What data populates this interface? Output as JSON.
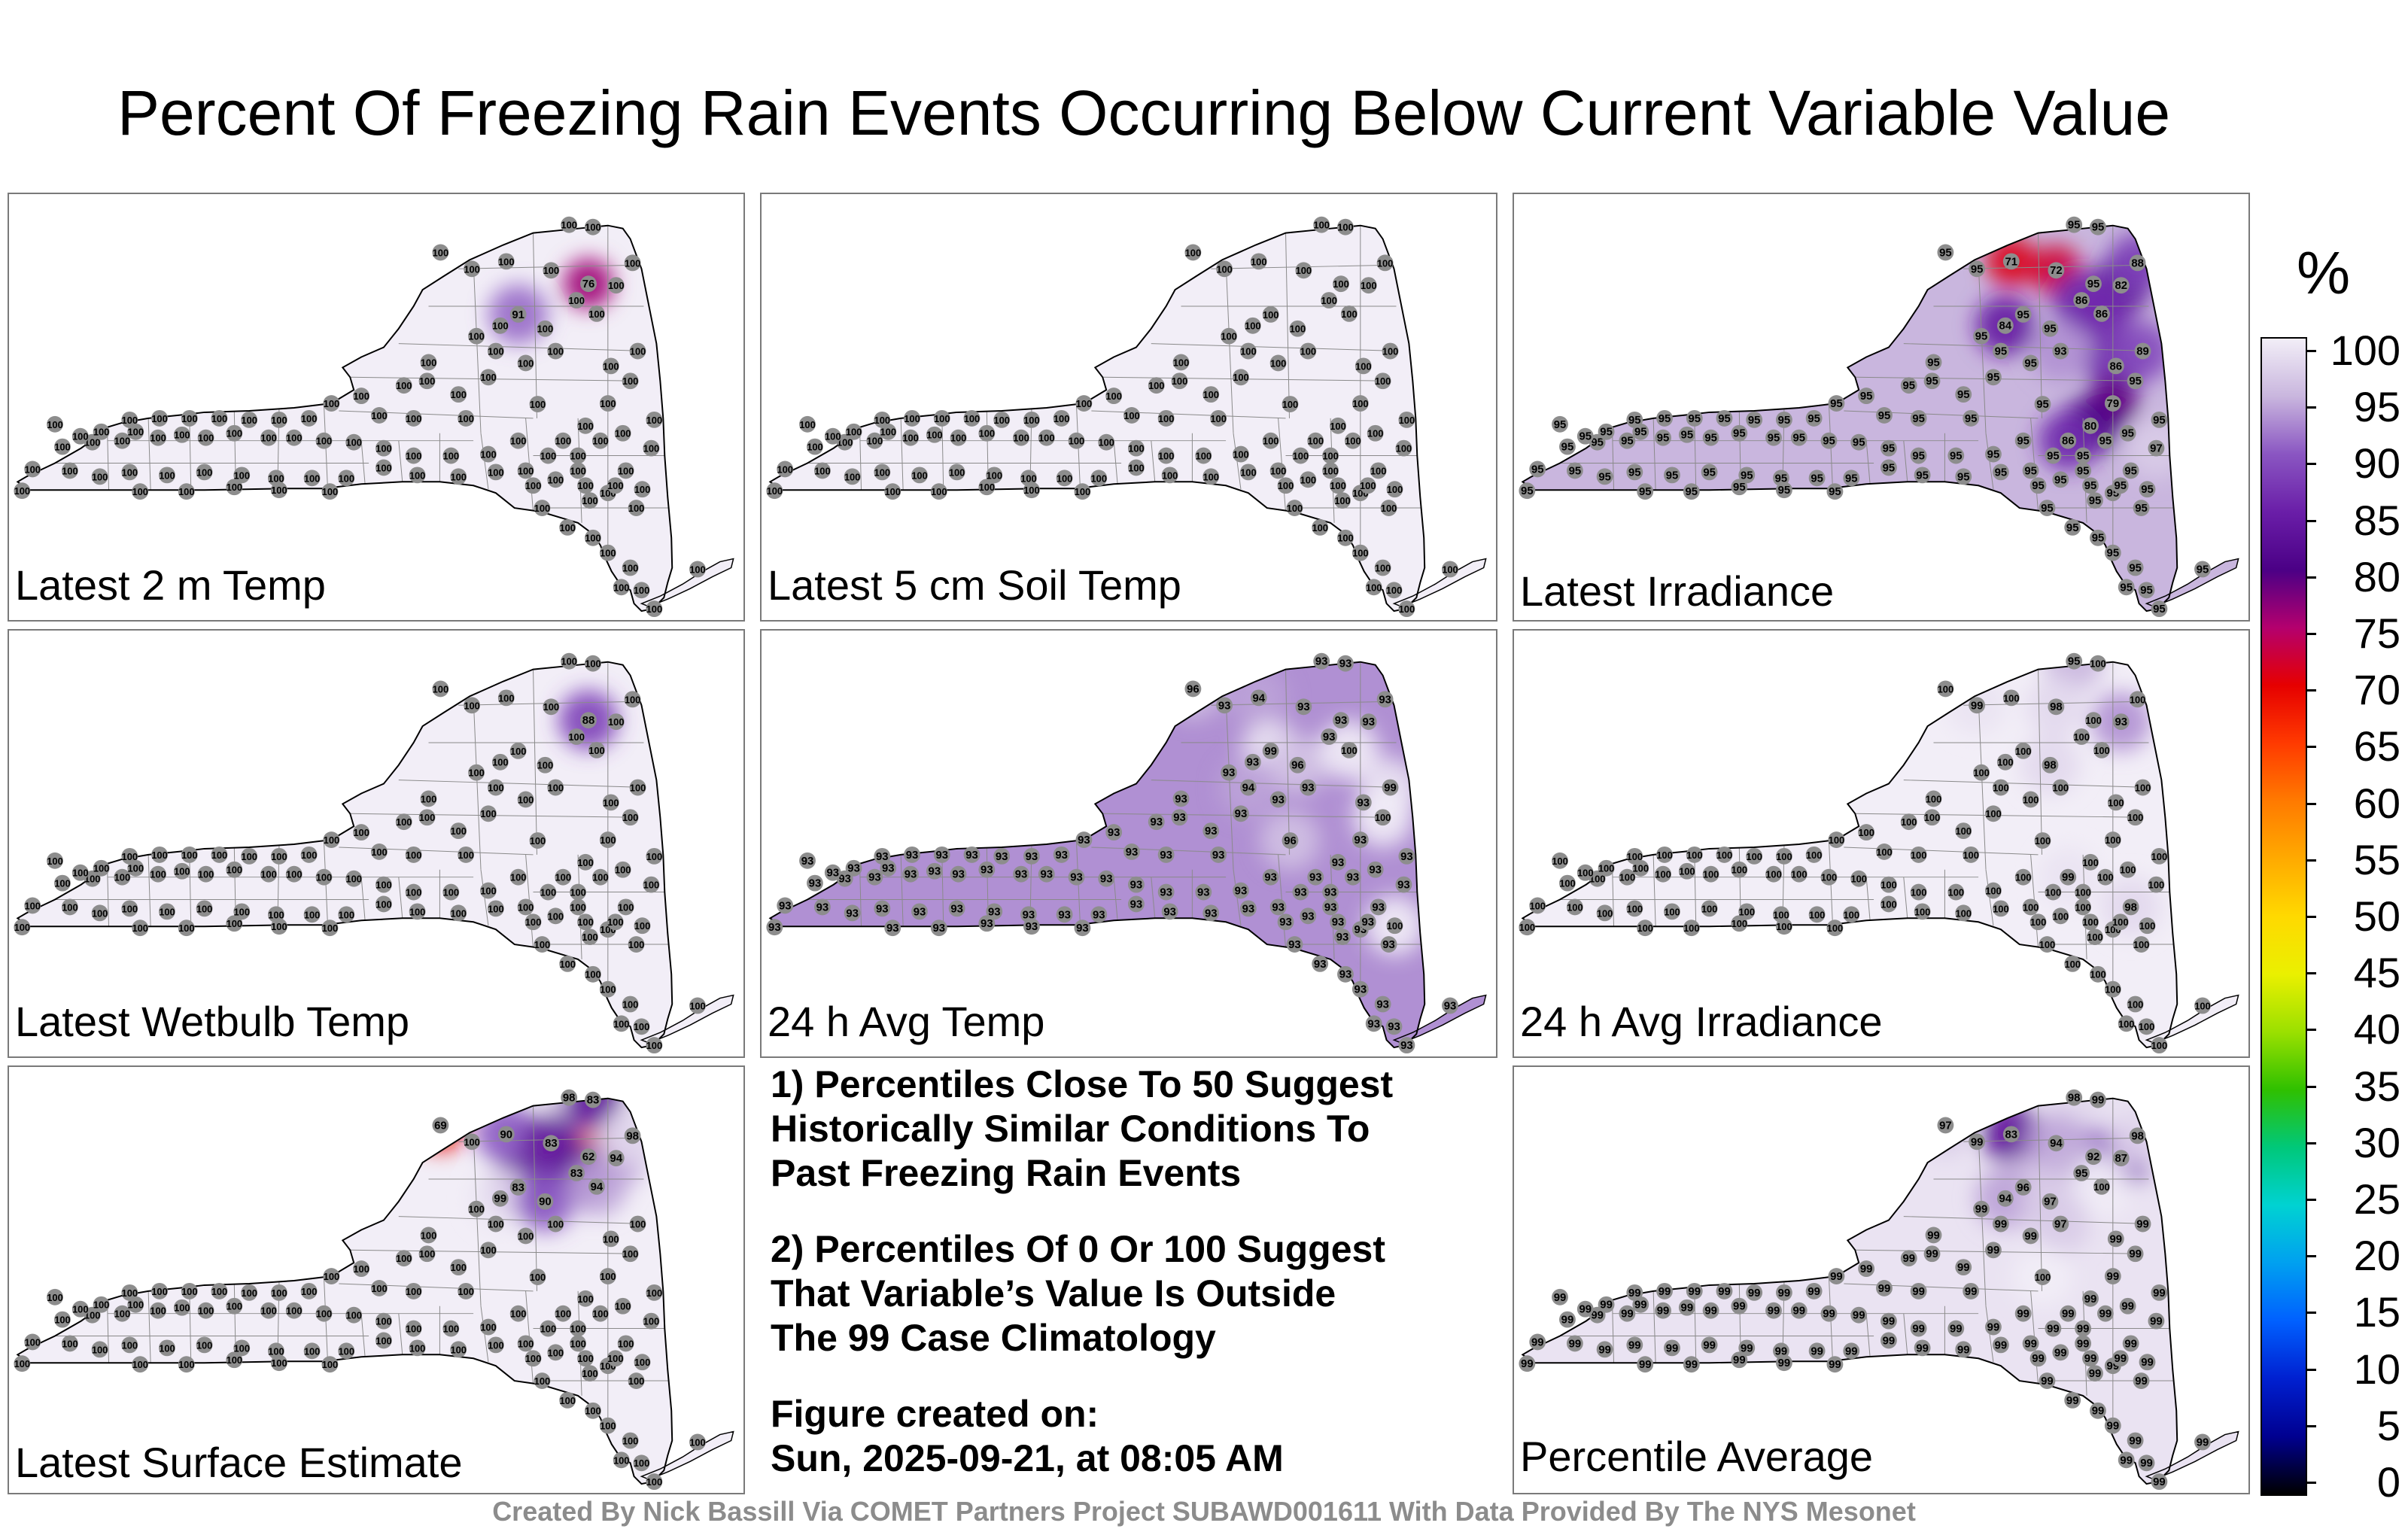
{
  "title": "Percent Of Freezing Rain Events Occurring Below Current Variable Value",
  "panels": [
    {
      "label": "Latest 2 m Temp",
      "base_value": 100,
      "overrides": {
        "4": 76,
        "9": 91
      }
    },
    {
      "label": "Latest 5 cm Soil Temp",
      "base_value": 100,
      "overrides": {}
    },
    {
      "label": "Latest Irradiance",
      "base_value": 95,
      "overrides": {
        "5": 82,
        "6": 71,
        "7": 72,
        "8": 86,
        "10": 84,
        "12": 88,
        "13": 86,
        "14": 93,
        "16": 86,
        "17": 89,
        "18": 79,
        "19": 80,
        "20": 86,
        "23": 97
      }
    },
    {
      "label": "Latest Wetbulb Temp",
      "base_value": 100,
      "overrides": {
        "4": 88
      }
    },
    {
      "label": "24 h Avg Temp",
      "base_value": 93,
      "overrides": {
        "2": 96,
        "6": 94,
        "9": 99,
        "11": 96,
        "13": 100,
        "15": 94,
        "17": 99,
        "21": 100,
        "25": 100,
        "30": 96
      }
    },
    {
      "label": "24 h Avg Irradiance",
      "base_value": 100,
      "overrides": {
        "0": 95,
        "3": 99,
        "5": 93,
        "7": 98,
        "11": 98,
        "20": 99,
        "24": 98
      }
    },
    {
      "label": "Latest Surface Estimate",
      "base_value": 100,
      "overrides": {
        "0": 98,
        "1": 83,
        "2": 69,
        "4": 62,
        "5": 94,
        "6": 90,
        "7": 83,
        "8": 83,
        "9": 83,
        "10": 99,
        "11": 90,
        "12": 98,
        "13": 94
      }
    },
    {
      "label": "Percentile Average",
      "base_value": 99,
      "overrides": {
        "0": 98,
        "2": 97,
        "4": 92,
        "5": 87,
        "6": 83,
        "7": 94,
        "8": 95,
        "9": 96,
        "10": 94,
        "11": 97,
        "12": 98,
        "13": 100,
        "14": 97,
        "30": 100
      }
    }
  ],
  "notes": {
    "line1": "1) Percentiles Close To 50 Suggest",
    "line2": "Historically Similar Conditions To",
    "line3": "Past Freezing Rain Events",
    "line4": "2) Percentiles Of 0 Or 100 Suggest",
    "line5": "That Variable’s Value Is Outside",
    "line6": "The 99 Case Climatology",
    "line7": "Figure created on:",
    "line8": "Sun, 2025-09-21, at 08:05 AM"
  },
  "credit": "Created By Nick Bassill Via COMET Partners Project SUBAWD001611 With Data Provided By The NYS Mesonet",
  "colorbar": {
    "unit": "%",
    "ticks": [
      "100",
      "95",
      "90",
      "85",
      "80",
      "75",
      "70",
      "65",
      "60",
      "55",
      "50",
      "45",
      "40",
      "35",
      "30",
      "25",
      "20",
      "15",
      "10",
      "5",
      "0"
    ],
    "colors": [
      "#f2eef7",
      "#c9b6de",
      "#8a56c2",
      "#6a1ea8",
      "#4b0086",
      "#b4006e",
      "#e60000",
      "#ff3a00",
      "#ff7a00",
      "#ffaa00",
      "#ffd900",
      "#eaf000",
      "#9be000",
      "#2fc000",
      "#00c87a",
      "#00d2d2",
      "#00a0f0",
      "#0060ff",
      "#0020d0",
      "#000090",
      "#000000"
    ]
  }
}
